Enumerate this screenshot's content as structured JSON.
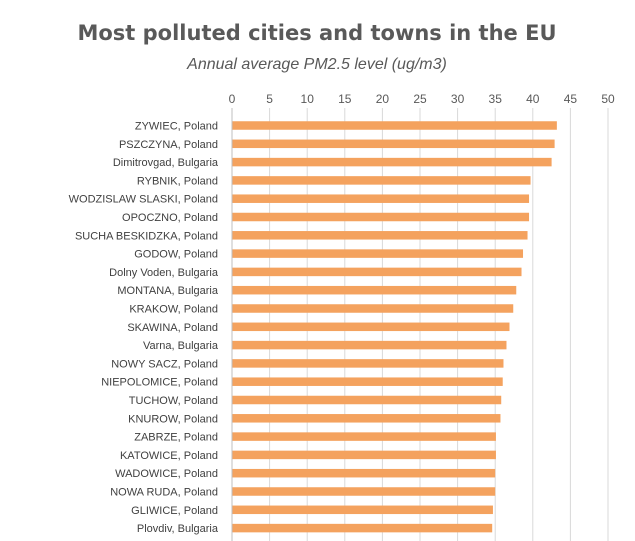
{
  "chart_data": {
    "type": "bar",
    "orientation": "horizontal",
    "title": "Most polluted cities and towns in the EU",
    "subtitle": "Annual average PM2.5 level (ug/m3)",
    "xlabel": "",
    "ylabel": "",
    "xlim": [
      0,
      50
    ],
    "ticks": [
      0,
      5,
      10,
      15,
      20,
      25,
      30,
      35,
      40,
      45,
      50
    ],
    "axis_position": "top",
    "grid": true,
    "bar_color": "#f4a25e",
    "categories": [
      "ZYWIEC, Poland",
      "PSZCZYNA, Poland",
      "Dimitrovgad, Bulgaria",
      "RYBNIK, Poland",
      "WODZISLAW SLASKI, Poland",
      "OPOCZNO, Poland",
      "SUCHA BESKIDZKA, Poland",
      "GODOW, Poland",
      "Dolny Voden, Bulgaria",
      "MONTANA, Bulgaria",
      "KRAKOW, Poland",
      "SKAWINA, Poland",
      "Varna, Bulgaria",
      "NOWY SACZ, Poland",
      "NIEPOLOMICE, Poland",
      "TUCHOW, Poland",
      "KNUROW, Poland",
      "ZABRZE, Poland",
      "KATOWICE, Poland",
      "WADOWICE, Poland",
      "NOWA RUDA, Poland",
      "GLIWICE, Poland",
      "Plovdiv, Bulgaria"
    ],
    "values": [
      43.2,
      42.9,
      42.5,
      39.7,
      39.5,
      39.5,
      39.3,
      38.7,
      38.5,
      37.8,
      37.4,
      36.9,
      36.5,
      36.1,
      36.0,
      35.8,
      35.7,
      35.1,
      35.1,
      35.0,
      35.0,
      34.7,
      34.6
    ]
  }
}
